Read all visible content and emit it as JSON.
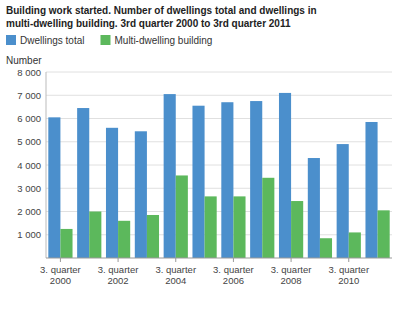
{
  "chart_data": {
    "type": "bar",
    "title": "Building work started. Number of dwellings total and dwellings in",
    "subtitle": "multi-dwelling building. 3rd quarter 2000 to 3rd quarter 2011",
    "ylabel": "Number",
    "categories": [
      "3. quarter\n2000",
      null,
      "3. quarter\n2002",
      null,
      "3. quarter\n2004",
      null,
      "3. quarter\n2006",
      null,
      "3. quarter\n2008",
      null,
      "3. quarter\n2010",
      null
    ],
    "series": [
      {
        "name": "Dwellings total",
        "color": "#4b8fcc",
        "values": [
          6050,
          6450,
          5600,
          5450,
          7050,
          6550,
          6700,
          6750,
          7100,
          4300,
          4900,
          5850
        ]
      },
      {
        "name": "Multi-dwelling building",
        "color": "#5cb85c",
        "values": [
          1250,
          2000,
          1600,
          1850,
          3550,
          2650,
          2650,
          3450,
          2450,
          850,
          1100,
          2050
        ]
      }
    ],
    "ylim": [
      0,
      8000
    ],
    "yticks": [
      {
        "value": 1000,
        "label": "1 000"
      },
      {
        "value": 2000,
        "label": "2 000"
      },
      {
        "value": 3000,
        "label": "3 000"
      },
      {
        "value": 4000,
        "label": "4 000"
      },
      {
        "value": 5000,
        "label": "5 000"
      },
      {
        "value": 6000,
        "label": "6 000"
      },
      {
        "value": 7000,
        "label": "7 000"
      },
      {
        "value": 8000,
        "label": "8 000"
      }
    ],
    "grid": true,
    "legend": "upper left"
  }
}
